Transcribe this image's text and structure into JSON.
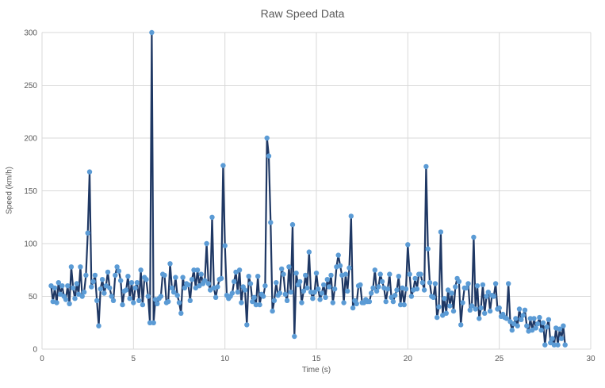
{
  "chart_data": {
    "type": "scatter",
    "title": "Raw Speed Data",
    "xlabel": "Time (s)",
    "ylabel": "Speed (km/h)",
    "xlim": [
      0,
      30
    ],
    "ylim": [
      0,
      300
    ],
    "x_ticks": [
      "0",
      "5",
      "10",
      "15",
      "20",
      "25",
      "30"
    ],
    "y_ticks": [
      "0",
      "50",
      "100",
      "150",
      "200",
      "250",
      "300"
    ],
    "grid": true,
    "legend": "none",
    "line_color": "#1f3864",
    "marker_color": "#5b9bd5",
    "series": [
      {
        "values": []
      }
    ]
  }
}
